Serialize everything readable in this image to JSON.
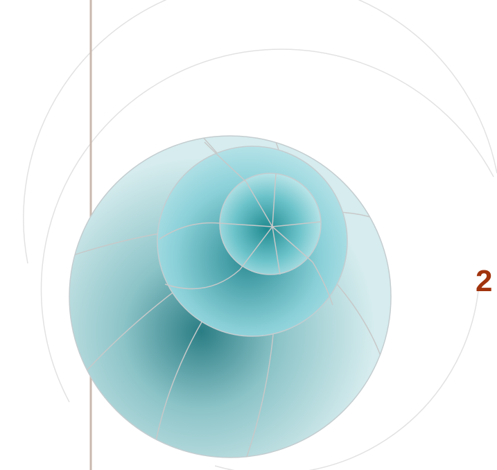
{
  "slide": {
    "edge_text": "2",
    "colors": {
      "background": "#ffffff",
      "vertical_rule": "#c9b8ae",
      "sphere_light": "#c8e9ed",
      "sphere_mid": "#8fc9cf",
      "sphere_dark": "#1f7f86",
      "grid_lines": "#c8c8c8",
      "arc_outline": "#e2e2e2",
      "edge_text": "#a1330d"
    },
    "icons": {
      "decoration": "nested-spheres-graphic"
    }
  }
}
